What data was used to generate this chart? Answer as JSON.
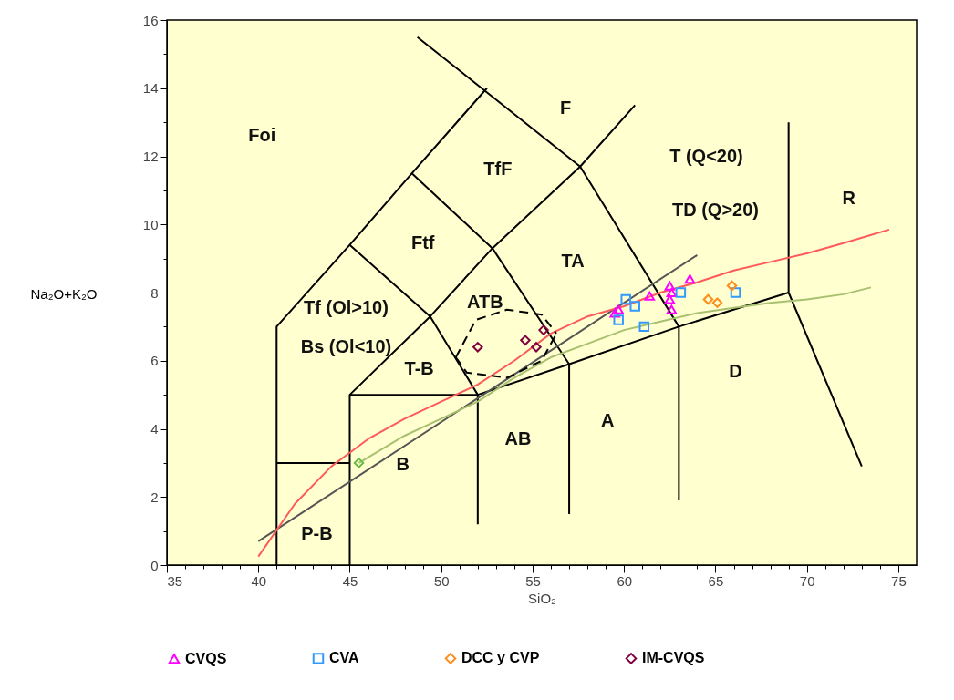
{
  "chart_data": {
    "type": "scatter",
    "xlabel": "SiO₂",
    "ylabel": "Na₂O+K₂O",
    "xlim": [
      35,
      76
    ],
    "ylim": [
      0,
      16
    ],
    "xticks": [
      35,
      {
        "value": 36,
        "label": null
      },
      {
        "value": 37,
        "label": null
      },
      {
        "value": 38,
        "label": null
      },
      {
        "value": 39,
        "label": null
      },
      40,
      {
        "value": 41,
        "label": null
      },
      {
        "value": 42,
        "label": null
      },
      {
        "value": 43,
        "label": null
      },
      {
        "value": 44,
        "label": null
      },
      45,
      {
        "value": 46,
        "label": null
      },
      {
        "value": 47,
        "label": null
      },
      {
        "value": 48,
        "label": null
      },
      {
        "value": 49,
        "label": null
      },
      50,
      {
        "value": 51,
        "label": null
      },
      {
        "value": 52,
        "label": null
      },
      {
        "value": 53,
        "label": null
      },
      {
        "value": 54,
        "label": null
      },
      55,
      {
        "value": 56,
        "label": null
      },
      {
        "value": 57,
        "label": null
      },
      {
        "value": 58,
        "label": null
      },
      {
        "value": 59,
        "label": null
      },
      60,
      {
        "value": 61,
        "label": null
      },
      {
        "value": 62,
        "label": null
      },
      {
        "value": 63,
        "label": null
      },
      {
        "value": 64,
        "label": null
      },
      65,
      {
        "value": 66,
        "label": null
      },
      {
        "value": 67,
        "label": null
      },
      {
        "value": 68,
        "label": null
      },
      {
        "value": 69,
        "label": null
      },
      70,
      {
        "value": 71,
        "label": null
      },
      {
        "value": 72,
        "label": null
      },
      {
        "value": 73,
        "label": null
      },
      {
        "value": 74,
        "label": null
      },
      75
    ],
    "yticks": [
      0,
      {
        "value": 1,
        "label": null
      },
      2,
      {
        "value": 3,
        "label": null
      },
      4,
      {
        "value": 5,
        "label": null
      },
      6,
      {
        "value": 7,
        "label": null
      },
      8,
      {
        "value": 9,
        "label": null
      },
      10,
      {
        "value": 11,
        "label": null
      },
      12,
      {
        "value": 13,
        "label": null
      },
      14,
      {
        "value": 15,
        "label": null
      },
      16
    ],
    "legend": "bottom",
    "series": [
      {
        "type": "line",
        "color": "#000000",
        "x": [
          41,
          41,
          45,
          48.4,
          52.5
        ],
        "values": [
          0,
          7,
          9.4,
          11.5,
          14
        ]
      },
      {
        "type": "line",
        "color": "#000000",
        "x": [
          45,
          45,
          52,
          57,
          63,
          69
        ],
        "values": [
          0,
          5,
          5,
          5.9,
          7,
          8
        ]
      },
      {
        "type": "line",
        "color": "#000000",
        "x": [
          69,
          69,
          73
        ],
        "values": [
          13,
          8,
          2.9
        ]
      },
      {
        "type": "line",
        "color": "#000000",
        "x": [
          45,
          49.4,
          52,
          52
        ],
        "values": [
          9.4,
          7.3,
          5,
          1.2
        ]
      },
      {
        "type": "line",
        "color": "#000000",
        "x": [
          48.4,
          52.8,
          57,
          57
        ],
        "values": [
          11.5,
          9.3,
          5.9,
          1.5
        ]
      },
      {
        "type": "line",
        "color": "#000000",
        "x": [
          48.7,
          57.6,
          63,
          63
        ],
        "values": [
          15.5,
          11.7,
          7,
          1.9
        ]
      },
      {
        "type": "line",
        "color": "#000000",
        "x": [
          41,
          45
        ],
        "values": [
          3,
          3
        ]
      },
      {
        "type": "line",
        "color": "#000000",
        "x": [
          45,
          49.4,
          52.8,
          57.6,
          60.6
        ],
        "values": [
          5,
          7.3,
          9.3,
          11.7,
          13.5
        ]
      },
      {
        "type": "line",
        "color": "#555555",
        "x": [
          40,
          64
        ],
        "values": [
          0.7,
          9.1
        ]
      },
      {
        "type": "line",
        "color": "#ff5a5a",
        "x": [
          40,
          42,
          44,
          46,
          48,
          50,
          52,
          54,
          56,
          58,
          60,
          62,
          64,
          66,
          68,
          70,
          72,
          74.5
        ],
        "values": [
          0.25,
          1.8,
          2.9,
          3.7,
          4.3,
          4.8,
          5.3,
          6.0,
          6.8,
          7.3,
          7.6,
          8.0,
          8.3,
          8.65,
          8.9,
          9.15,
          9.45,
          9.85
        ]
      },
      {
        "type": "line",
        "color": "#a8c070",
        "x": [
          45.5,
          48,
          50,
          52,
          54,
          56,
          58,
          60,
          62,
          64,
          66,
          68,
          70,
          72,
          73.5
        ],
        "values": [
          3.0,
          3.8,
          4.3,
          4.8,
          5.5,
          6.1,
          6.5,
          6.9,
          7.15,
          7.4,
          7.55,
          7.7,
          7.8,
          7.95,
          8.15
        ]
      },
      {
        "type": "line",
        "color": "#000000",
        "line_style": "dashed",
        "x": [
          50.8,
          51.9,
          53.6,
          55.5,
          56.3
        ],
        "values": [
          6.1,
          7.2,
          7.5,
          7.35,
          6.8
        ]
      },
      {
        "type": "line",
        "color": "#000000",
        "line_style": "dashed",
        "x": [
          50.8,
          51.4,
          53.6,
          55.5,
          56.3
        ],
        "values": [
          6.1,
          5.65,
          5.5,
          6.0,
          6.8
        ]
      },
      {
        "color": "#66bb44",
        "marker": "diamond",
        "x": [
          45.5
        ],
        "values": [
          3.0
        ]
      },
      {
        "name": "CVQS",
        "color": "#ff00ff",
        "marker": "triangle",
        "x": [
          59.5,
          59.7,
          61.4,
          62.5,
          62.6,
          62.5,
          62.6,
          63.6
        ],
        "values": [
          7.4,
          7.5,
          7.9,
          8.2,
          8.0,
          7.8,
          7.5,
          8.4
        ]
      },
      {
        "name": "CVA",
        "color": "#3399ff",
        "marker": "square",
        "x": [
          60.1,
          60.6,
          59.7,
          61.1,
          63.1,
          66.1
        ],
        "values": [
          7.8,
          7.6,
          7.2,
          7.0,
          8.0,
          8.0
        ]
      },
      {
        "name": "DCC y CVP",
        "color": "#ff8c1a",
        "marker": "diamond",
        "x": [
          65.9,
          64.6,
          65.1
        ],
        "values": [
          8.2,
          7.8,
          7.7
        ]
      },
      {
        "name": "IM-CVQS",
        "color": "#800040",
        "marker": "diamond",
        "x": [
          52.0,
          54.6,
          55.2,
          55.6
        ],
        "values": [
          6.4,
          6.6,
          6.4,
          6.9
        ]
      }
    ],
    "annotations": [
      "Foi",
      "F",
      "TfF",
      "T (Q<20)",
      "TD (Q>20)",
      "R",
      "Ftf",
      "TA",
      "Tf (Ol>10)",
      "Bs (Ol<10)",
      "ATB",
      "T-B",
      "D",
      "A",
      "AB",
      "B",
      "P-B"
    ]
  }
}
